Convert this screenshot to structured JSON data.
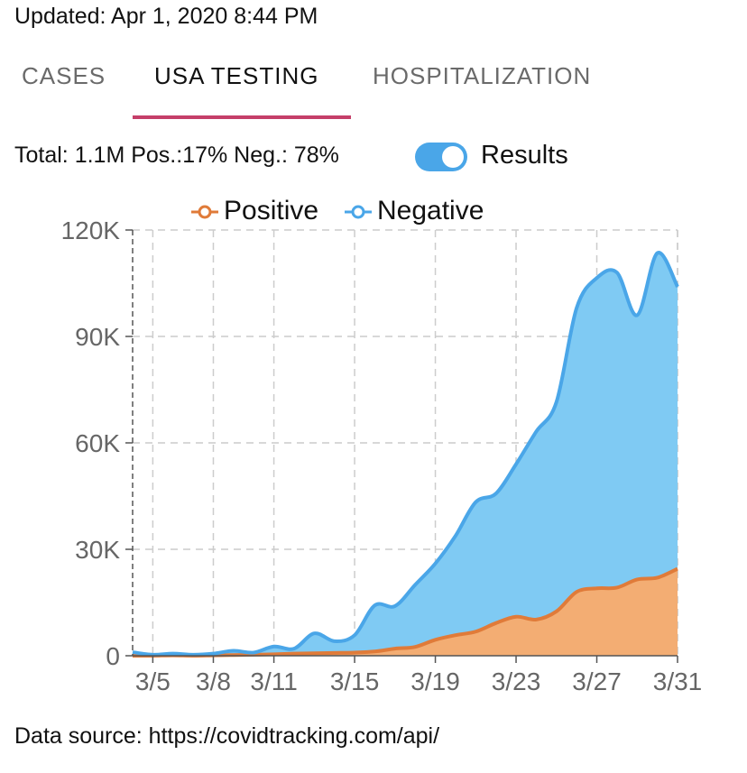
{
  "header": {
    "updated": "Updated: Apr 1, 2020 8:44 PM"
  },
  "tabs": [
    {
      "label": "CASES",
      "active": false
    },
    {
      "label": "USA TESTING",
      "active": true
    },
    {
      "label": "HOSPITALIZATION",
      "active": false
    }
  ],
  "summary": {
    "text": "Total: 1.1M Pos.:17% Neg.: 78%"
  },
  "toggle": {
    "label": "Results",
    "on": true
  },
  "colors": {
    "accent_tab": "#c53f69",
    "toggle": "#4aa6e8",
    "positive_line": "#e07b39",
    "positive_fill": "#f3ad73",
    "negative_line": "#4aa6e8",
    "negative_fill": "#7fcaf3"
  },
  "chart_data": {
    "type": "area",
    "title": "",
    "xlabel": "",
    "ylabel": "",
    "stacked": true,
    "legend": {
      "placement": "top",
      "entries": [
        "Positive",
        "Negative"
      ]
    },
    "grid": true,
    "ylim": [
      0,
      120000
    ],
    "yticks": [
      {
        "value": 0,
        "label": "0"
      },
      {
        "value": 30000,
        "label": "30K"
      },
      {
        "value": 60000,
        "label": "60K"
      },
      {
        "value": 90000,
        "label": "90K"
      },
      {
        "value": 120000,
        "label": "120K"
      }
    ],
    "xticks": [
      "3/5",
      "3/8",
      "3/11",
      "3/15",
      "3/19",
      "3/23",
      "3/27",
      "3/31"
    ],
    "x": [
      "3/4",
      "3/5",
      "3/6",
      "3/7",
      "3/8",
      "3/9",
      "3/10",
      "3/11",
      "3/12",
      "3/13",
      "3/14",
      "3/15",
      "3/16",
      "3/17",
      "3/18",
      "3/19",
      "3/20",
      "3/21",
      "3/22",
      "3/23",
      "3/24",
      "3/25",
      "3/26",
      "3/27",
      "3/28",
      "3/29",
      "3/30",
      "3/31"
    ],
    "series": [
      {
        "name": "Positive",
        "values": [
          0,
          0,
          100,
          0,
          100,
          200,
          300,
          400,
          600,
          700,
          800,
          900,
          1200,
          2000,
          2500,
          4500,
          5800,
          6800,
          9200,
          11000,
          10200,
          12500,
          18000,
          19000,
          19200,
          21500,
          22000,
          24500
        ]
      },
      {
        "name": "Negative",
        "values": [
          1000,
          300,
          500,
          300,
          500,
          1200,
          600,
          2200,
          1400,
          5600,
          3300,
          4900,
          13000,
          12000,
          17500,
          21500,
          28000,
          36500,
          36500,
          43000,
          53000,
          59000,
          80000,
          87500,
          88800,
          74500,
          91500,
          79500
        ]
      }
    ]
  },
  "footer": {
    "source": "Data source: https://covidtracking.com/api/"
  }
}
